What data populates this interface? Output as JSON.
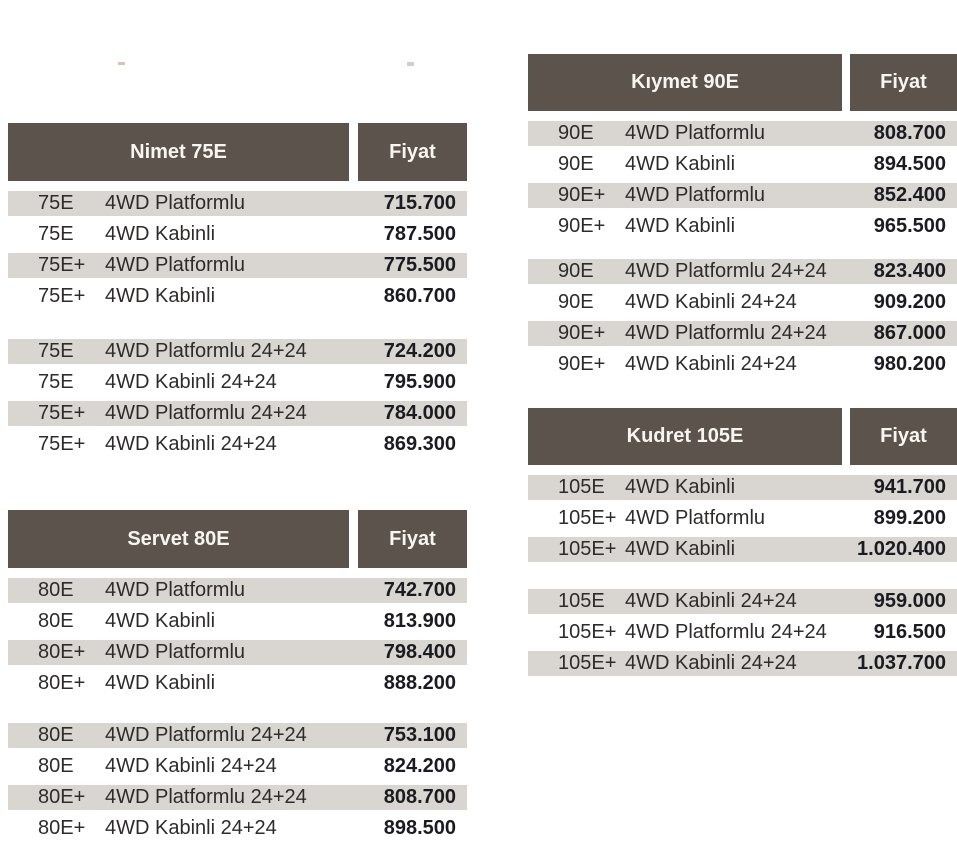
{
  "shared": {
    "price_header": "Fiyat"
  },
  "colors": {
    "header_bg": "#5d534d",
    "header_text": "#f8f5f1",
    "stripe_bg": "#d9d5d1",
    "label_text": "#2e2c2b",
    "price_text": "#1c1b21",
    "page_bg": "#ffffff"
  },
  "tables": [
    {
      "title": "Nimet 75E",
      "groups": [
        {
          "rows": [
            {
              "code": "75E",
              "variant": "4WD Platformlu",
              "price": "715.700"
            },
            {
              "code": "75E",
              "variant": "4WD Kabinli",
              "price": "787.500"
            },
            {
              "code": "75E+",
              "variant": "4WD Platformlu",
              "price": "775.500"
            },
            {
              "code": "75E+",
              "variant": "4WD Kabinli",
              "price": "860.700"
            }
          ]
        },
        {
          "rows": [
            {
              "code": "75E",
              "variant": "4WD Platformlu 24+24",
              "price": "724.200"
            },
            {
              "code": "75E",
              "variant": "4WD Kabinli 24+24",
              "price": "795.900"
            },
            {
              "code": "75E+",
              "variant": "4WD Platformlu 24+24",
              "price": "784.000"
            },
            {
              "code": "75E+",
              "variant": "4WD Kabinli 24+24",
              "price": "869.300"
            }
          ]
        }
      ]
    },
    {
      "title": "Servet 80E",
      "groups": [
        {
          "rows": [
            {
              "code": "80E",
              "variant": "4WD Platformlu",
              "price": "742.700"
            },
            {
              "code": "80E",
              "variant": "4WD Kabinli",
              "price": "813.900"
            },
            {
              "code": "80E+",
              "variant": "4WD Platformlu",
              "price": "798.400"
            },
            {
              "code": "80E+",
              "variant": "4WD Kabinli",
              "price": "888.200"
            }
          ]
        },
        {
          "rows": [
            {
              "code": "80E",
              "variant": "4WD Platformlu 24+24",
              "price": "753.100"
            },
            {
              "code": "80E",
              "variant": "4WD Kabinli 24+24",
              "price": "824.200"
            },
            {
              "code": "80E+",
              "variant": "4WD Platformlu 24+24",
              "price": "808.700"
            },
            {
              "code": "80E+",
              "variant": "4WD Kabinli 24+24",
              "price": "898.500"
            }
          ]
        }
      ]
    },
    {
      "title": "Kıymet 90E",
      "groups": [
        {
          "rows": [
            {
              "code": "90E",
              "variant": "4WD Platformlu",
              "price": "808.700"
            },
            {
              "code": "90E",
              "variant": "4WD Kabinli",
              "price": "894.500"
            },
            {
              "code": "90E+",
              "variant": "4WD Platformlu",
              "price": "852.400"
            },
            {
              "code": "90E+",
              "variant": "4WD Kabinli",
              "price": "965.500"
            }
          ]
        },
        {
          "rows": [
            {
              "code": "90E",
              "variant": "4WD Platformlu 24+24",
              "price": "823.400"
            },
            {
              "code": "90E",
              "variant": "4WD Kabinli 24+24",
              "price": "909.200"
            },
            {
              "code": "90E+",
              "variant": "4WD Platformlu 24+24",
              "price": "867.000"
            },
            {
              "code": "90E+",
              "variant": "4WD Kabinli 24+24",
              "price": "980.200"
            }
          ]
        }
      ]
    },
    {
      "title": "Kudret 105E",
      "groups": [
        {
          "rows": [
            {
              "code": "105E",
              "variant": "4WD Kabinli",
              "price": "941.700"
            },
            {
              "code": "105E+",
              "variant": "4WD Platformlu",
              "price": "899.200"
            },
            {
              "code": "105E+",
              "variant": "4WD Kabinli",
              "price": "1.020.400"
            }
          ]
        },
        {
          "rows": [
            {
              "code": "105E",
              "variant": "4WD Kabinli 24+24",
              "price": "959.000"
            },
            {
              "code": "105E+",
              "variant": "4WD Platformlu 24+24",
              "price": "916.500"
            },
            {
              "code": "105E+",
              "variant": "4WD Kabinli 24+24",
              "price": "1.037.700"
            }
          ]
        }
      ]
    }
  ]
}
